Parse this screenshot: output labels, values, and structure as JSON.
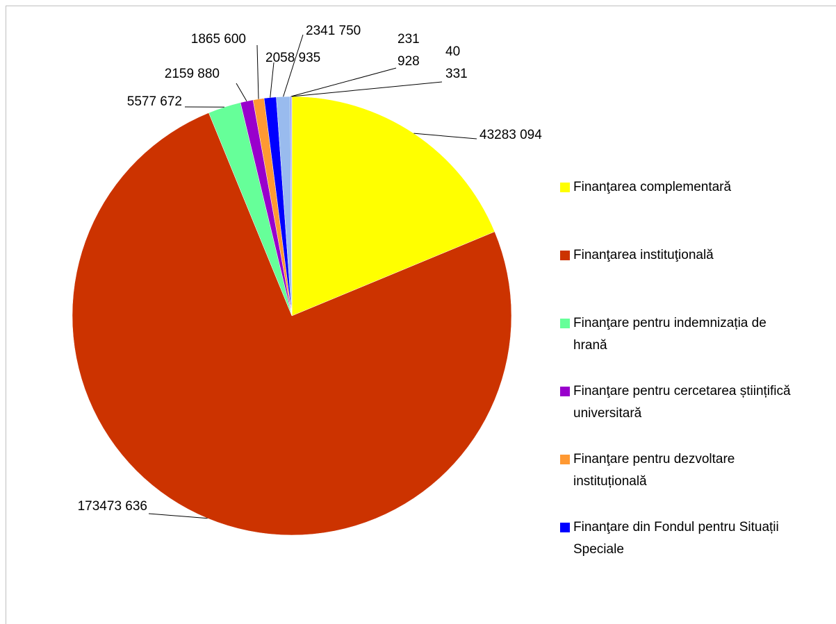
{
  "chart_data": {
    "type": "pie",
    "categories": [
      "Finanţarea complementară",
      "Finanţarea instituţională",
      "Finanţare pentru indemnizația de hrană",
      "Finanţare pentru cercetarea științifică universitară",
      "Finanţare pentru dezvoltare instituțională",
      "Finanţare din Fondul pentru Situații Speciale",
      null,
      null,
      null
    ],
    "values": [
      43283094,
      173473636,
      5577672,
      2159880,
      1865600,
      2058935,
      2341750,
      231928,
      40331
    ],
    "value_labels": [
      "43283 094",
      "173473 636",
      "5577 672",
      "2159 880",
      "1865 600",
      "2058 935",
      "2341 750",
      [
        "231",
        "928"
      ],
      [
        "40",
        "331"
      ]
    ],
    "colors": [
      "#ffff00",
      "#cc3300",
      "#66ff99",
      "#9900cc",
      "#ff9933",
      "#0000ff",
      "#99bbee",
      "#7f7fff",
      "#ffcc99"
    ],
    "legend": "right"
  }
}
